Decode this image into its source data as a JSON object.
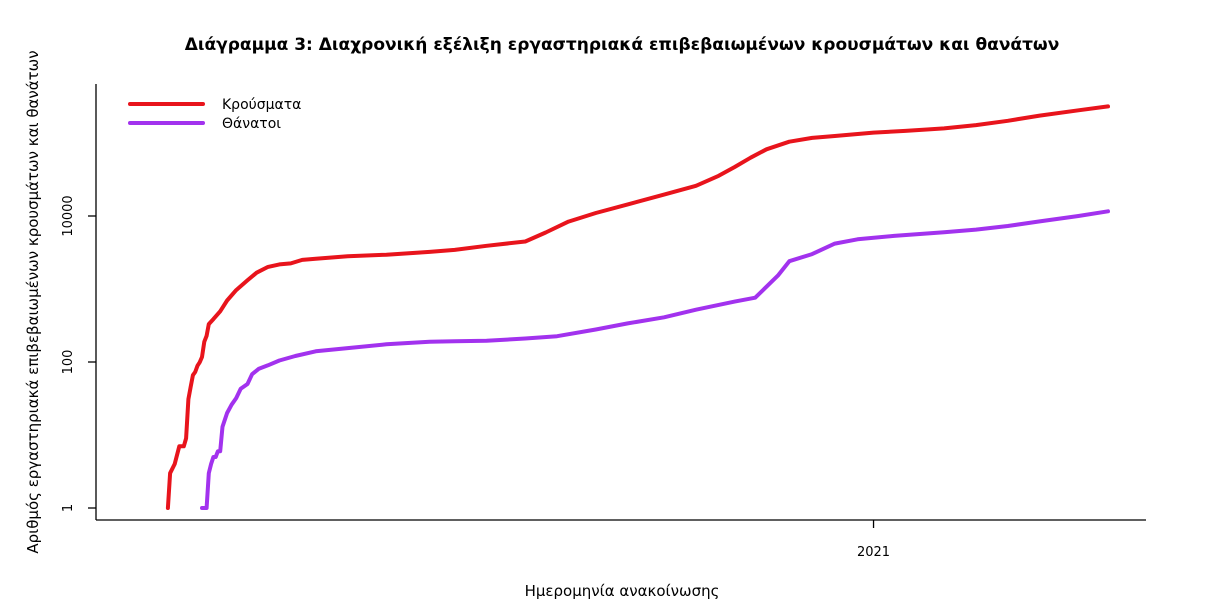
{
  "chart_data": {
    "type": "line",
    "title": "Διάγραμμα 3: Διαχρονική εξέλιξη εργαστηριακά επιβεβαιωμένων κρουσμάτων και θανάτων",
    "xlabel": "Ημερομηνία ανακοίνωσης",
    "ylabel": "Αριθμός εργαστηριακά επιβεβαιωμένων κρουσμάτων και θανάτων",
    "y_scale": "log",
    "ylim": [
      1,
      400000
    ],
    "y_ticks": [
      {
        "value": 1,
        "label": "1"
      },
      {
        "value": 100,
        "label": "100"
      },
      {
        "value": 10000,
        "label": "10000"
      }
    ],
    "xlim": [
      "2020-02-12",
      "2021-04-14"
    ],
    "x_ticks": [
      {
        "value": "2021-01-01",
        "label": "2021"
      }
    ],
    "legend_position": "top-left",
    "grid": false,
    "series": [
      {
        "name": "Κρούσματα",
        "color": "#e8141c",
        "points": [
          [
            "2020-02-26",
            1
          ],
          [
            "2020-02-27",
            3
          ],
          [
            "2020-02-29",
            4
          ],
          [
            "2020-03-02",
            7
          ],
          [
            "2020-03-04",
            7
          ],
          [
            "2020-03-05",
            9
          ],
          [
            "2020-03-06",
            31
          ],
          [
            "2020-03-07",
            45
          ],
          [
            "2020-03-08",
            66
          ],
          [
            "2020-03-09",
            73
          ],
          [
            "2020-03-10",
            89
          ],
          [
            "2020-03-11",
            99
          ],
          [
            "2020-03-12",
            117
          ],
          [
            "2020-03-13",
            190
          ],
          [
            "2020-03-14",
            228
          ],
          [
            "2020-03-15",
            331
          ],
          [
            "2020-03-17",
            387
          ],
          [
            "2020-03-20",
            495
          ],
          [
            "2020-03-23",
            695
          ],
          [
            "2020-03-27",
            966
          ],
          [
            "2020-04-01",
            1314
          ],
          [
            "2020-04-05",
            1673
          ],
          [
            "2020-04-10",
            2011
          ],
          [
            "2020-04-15",
            2170
          ],
          [
            "2020-04-20",
            2245
          ],
          [
            "2020-04-25",
            2506
          ],
          [
            "2020-05-01",
            2591
          ],
          [
            "2020-05-15",
            2810
          ],
          [
            "2020-06-01",
            2952
          ],
          [
            "2020-06-20",
            3227
          ],
          [
            "2020-07-01",
            3432
          ],
          [
            "2020-07-15",
            3910
          ],
          [
            "2020-08-01",
            4477
          ],
          [
            "2020-08-10",
            5942
          ],
          [
            "2020-08-20",
            8381
          ],
          [
            "2020-09-01",
            10998
          ],
          [
            "2020-09-15",
            14401
          ],
          [
            "2020-10-01",
            19613
          ],
          [
            "2020-10-15",
            25902
          ],
          [
            "2020-10-25",
            35510
          ],
          [
            "2020-11-01",
            46892
          ],
          [
            "2020-11-08",
            62988
          ],
          [
            "2020-11-15",
            82034
          ],
          [
            "2020-11-25",
            104227
          ],
          [
            "2020-12-05",
            117463
          ],
          [
            "2020-12-15",
            124863
          ],
          [
            "2021-01-01",
            138850
          ],
          [
            "2021-01-15",
            146569
          ],
          [
            "2021-02-01",
            158730
          ],
          [
            "2021-02-15",
            176103
          ],
          [
            "2021-03-01",
            201408
          ],
          [
            "2021-03-15",
            237486
          ],
          [
            "2021-04-01",
            280142
          ],
          [
            "2021-04-14",
            317500
          ]
        ]
      },
      {
        "name": "Θάνατοι",
        "color": "#a232ee",
        "points": [
          [
            "2020-03-12",
            1
          ],
          [
            "2020-03-14",
            1
          ],
          [
            "2020-03-15",
            3
          ],
          [
            "2020-03-16",
            4
          ],
          [
            "2020-03-17",
            5
          ],
          [
            "2020-03-18",
            5
          ],
          [
            "2020-03-19",
            6
          ],
          [
            "2020-03-20",
            6
          ],
          [
            "2020-03-21",
            13
          ],
          [
            "2020-03-23",
            20
          ],
          [
            "2020-03-25",
            26
          ],
          [
            "2020-03-27",
            32
          ],
          [
            "2020-03-29",
            43
          ],
          [
            "2020-04-01",
            50
          ],
          [
            "2020-04-03",
            68
          ],
          [
            "2020-04-06",
            81
          ],
          [
            "2020-04-10",
            90
          ],
          [
            "2020-04-15",
            105
          ],
          [
            "2020-04-22",
            121
          ],
          [
            "2020-05-01",
            140
          ],
          [
            "2020-05-15",
            155
          ],
          [
            "2020-06-01",
            175
          ],
          [
            "2020-06-20",
            190
          ],
          [
            "2020-07-01",
            192
          ],
          [
            "2020-07-15",
            195
          ],
          [
            "2020-08-01",
            210
          ],
          [
            "2020-08-15",
            226
          ],
          [
            "2020-09-01",
            279
          ],
          [
            "2020-09-15",
            338
          ],
          [
            "2020-10-01",
            409
          ],
          [
            "2020-10-15",
            520
          ],
          [
            "2020-11-01",
            673
          ],
          [
            "2020-11-10",
            760
          ],
          [
            "2020-11-20",
            1527
          ],
          [
            "2020-11-25",
            2406
          ],
          [
            "2020-12-05",
            3004
          ],
          [
            "2020-12-15",
            4186
          ],
          [
            "2020-12-25",
            4788
          ],
          [
            "2021-01-10",
            5343
          ],
          [
            "2021-02-01",
            5993
          ],
          [
            "2021-02-15",
            6512
          ],
          [
            "2021-03-01",
            7289
          ],
          [
            "2021-03-15",
            8430
          ],
          [
            "2021-04-01",
            9998
          ],
          [
            "2021-04-14",
            11600
          ]
        ]
      }
    ]
  }
}
